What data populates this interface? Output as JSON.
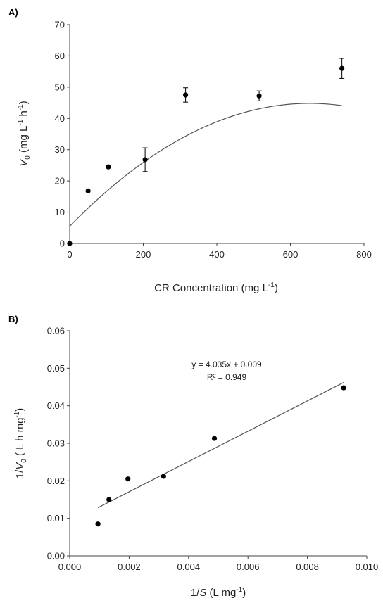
{
  "colors": {
    "points": "#000000",
    "fit_line": "#555555",
    "axes": "#444444"
  },
  "chart_data": [
    {
      "type": "scatter",
      "panel_label": "A)",
      "xlabel": "CR Concentration (mg L",
      "xlabel_sup": "-1",
      "xlabel_end": ")",
      "ylabel_var": "V",
      "ylabel_sub": "0",
      "ylabel_mid": " (mg L",
      "ylabel_sup1": "-1",
      "ylabel_mid2": " h",
      "ylabel_sup2": "-1",
      "ylabel_end": ")",
      "xlim": [
        0,
        800
      ],
      "ylim": [
        0,
        70
      ],
      "x_ticks": [
        "0",
        "200",
        "400",
        "600",
        "800"
      ],
      "y_ticks": [
        "0",
        "10",
        "20",
        "30",
        "40",
        "50",
        "60",
        "70"
      ],
      "grid": false,
      "series": [
        {
          "x": [
            0,
            50,
            105,
            205,
            315,
            515,
            740
          ],
          "y": [
            0,
            16.8,
            24.5,
            26.8,
            47.5,
            47.2,
            56.0
          ],
          "y_err": [
            0,
            0,
            0,
            3.8,
            2.3,
            1.6,
            3.2
          ]
        }
      ],
      "fit": {
        "type": "quadratic",
        "coef": [
          5.5,
          0.1206,
          -9.25e-05
        ]
      }
    },
    {
      "type": "scatter",
      "panel_label": "B)",
      "xlabel_pre": "1/",
      "xlabel_var": "S",
      "xlabel_mid": " (L mg",
      "xlabel_sup": "-1",
      "xlabel_end": ")",
      "ylabel_pre": "1/",
      "ylabel_var": "V",
      "ylabel_sub": "0",
      "ylabel_mid": " ( L h mg",
      "ylabel_sup": "-1",
      "ylabel_end": ")",
      "xlim": [
        0.0,
        0.01
      ],
      "ylim": [
        0.0,
        0.06
      ],
      "x_ticks": [
        "0.000",
        "0.002",
        "0.004",
        "0.006",
        "0.008",
        "0.010"
      ],
      "y_ticks": [
        "0.00",
        "0.01",
        "0.02",
        "0.03",
        "0.04",
        "0.05",
        "0.06"
      ],
      "grid": false,
      "series": [
        {
          "x": [
            0.00095,
            0.00132,
            0.00196,
            0.00316,
            0.00487,
            0.00922
          ],
          "y": [
            0.0085,
            0.015,
            0.0205,
            0.0212,
            0.0313,
            0.0448
          ]
        }
      ],
      "fit": {
        "type": "linear",
        "slope": 4.035,
        "intercept": 0.009,
        "x_range": [
          0.00095,
          0.00922
        ]
      },
      "annotations": [
        "y = 4.035x + 0.009",
        "R² = 0.949"
      ]
    }
  ]
}
